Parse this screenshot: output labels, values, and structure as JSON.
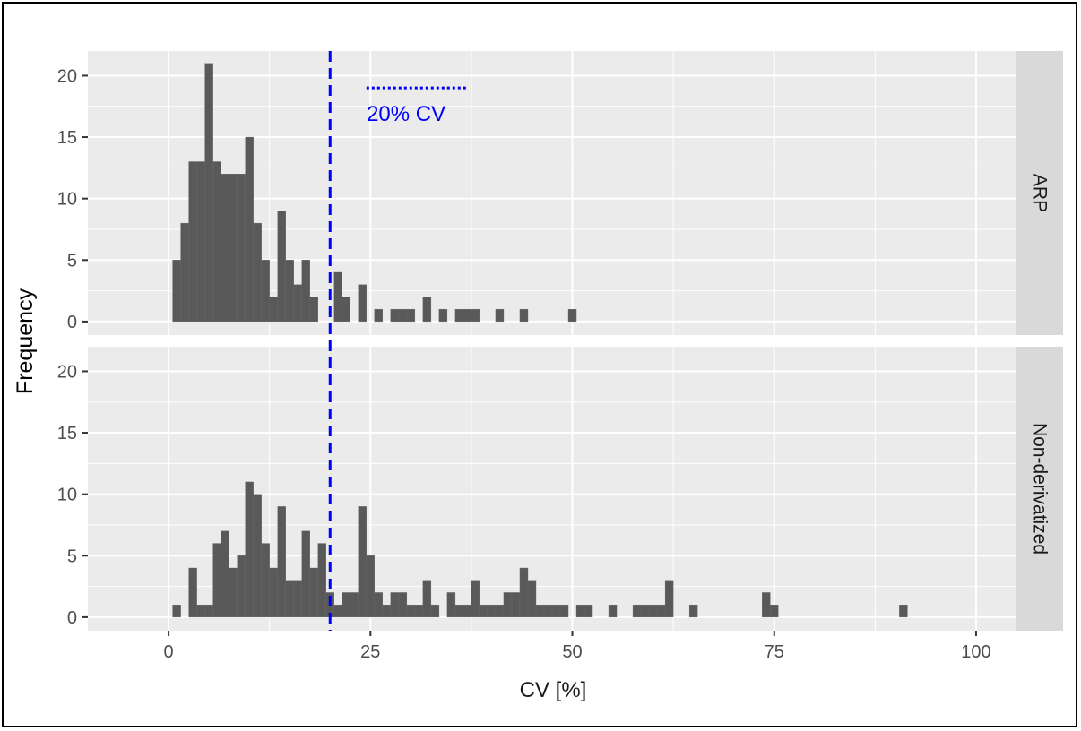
{
  "chart_data": {
    "type": "bar",
    "subtype": "faceted-histogram",
    "xlabel": "CV [%]",
    "ylabel": "Frequency",
    "xlim": [
      -10,
      105
    ],
    "ylim": [
      -1.1,
      22
    ],
    "x_ticks": [
      0,
      25,
      50,
      75,
      100
    ],
    "y_ticks": [
      0,
      5,
      10,
      15,
      20
    ],
    "bin_width": 1,
    "bar_color": "#595959",
    "panel_background": "#ebebeb",
    "grid_color": "#ffffff",
    "strip_background": "#d9d9d9",
    "grid": true,
    "reference_line": {
      "x": 20,
      "style": "dashed",
      "color": "#0000ff"
    },
    "annotation": {
      "text": "20% CV",
      "style": "dotted",
      "color": "#0000ff",
      "x_range": [
        24.5,
        37
      ],
      "y": 19
    },
    "panels": [
      {
        "label": "ARP",
        "bins": [
          {
            "x": 1,
            "y": 5
          },
          {
            "x": 2,
            "y": 8
          },
          {
            "x": 3,
            "y": 13
          },
          {
            "x": 4,
            "y": 13
          },
          {
            "x": 5,
            "y": 21
          },
          {
            "x": 6,
            "y": 13
          },
          {
            "x": 7,
            "y": 12
          },
          {
            "x": 8,
            "y": 12
          },
          {
            "x": 9,
            "y": 12
          },
          {
            "x": 10,
            "y": 15
          },
          {
            "x": 11,
            "y": 8
          },
          {
            "x": 12,
            "y": 5
          },
          {
            "x": 13,
            "y": 2
          },
          {
            "x": 14,
            "y": 9
          },
          {
            "x": 15,
            "y": 5
          },
          {
            "x": 16,
            "y": 3
          },
          {
            "x": 17,
            "y": 5
          },
          {
            "x": 18,
            "y": 2
          },
          {
            "x": 21,
            "y": 4
          },
          {
            "x": 22,
            "y": 2
          },
          {
            "x": 24,
            "y": 3
          },
          {
            "x": 26,
            "y": 1
          },
          {
            "x": 28,
            "y": 1
          },
          {
            "x": 29,
            "y": 1
          },
          {
            "x": 30,
            "y": 1
          },
          {
            "x": 32,
            "y": 2
          },
          {
            "x": 34,
            "y": 1
          },
          {
            "x": 36,
            "y": 1
          },
          {
            "x": 37,
            "y": 1
          },
          {
            "x": 38,
            "y": 1
          },
          {
            "x": 41,
            "y": 1
          },
          {
            "x": 44,
            "y": 1
          },
          {
            "x": 50,
            "y": 1
          }
        ]
      },
      {
        "label": "Non-derivatized",
        "bins": [
          {
            "x": 1,
            "y": 1
          },
          {
            "x": 3,
            "y": 4
          },
          {
            "x": 4,
            "y": 1
          },
          {
            "x": 5,
            "y": 1
          },
          {
            "x": 6,
            "y": 6
          },
          {
            "x": 7,
            "y": 7
          },
          {
            "x": 8,
            "y": 4
          },
          {
            "x": 9,
            "y": 5
          },
          {
            "x": 10,
            "y": 11
          },
          {
            "x": 11,
            "y": 10
          },
          {
            "x": 12,
            "y": 6
          },
          {
            "x": 13,
            "y": 4
          },
          {
            "x": 14,
            "y": 9
          },
          {
            "x": 15,
            "y": 3
          },
          {
            "x": 16,
            "y": 3
          },
          {
            "x": 17,
            "y": 7
          },
          {
            "x": 18,
            "y": 4
          },
          {
            "x": 19,
            "y": 6
          },
          {
            "x": 20,
            "y": 2
          },
          {
            "x": 21,
            "y": 1
          },
          {
            "x": 22,
            "y": 2
          },
          {
            "x": 23,
            "y": 2
          },
          {
            "x": 24,
            "y": 9
          },
          {
            "x": 25,
            "y": 5
          },
          {
            "x": 26,
            "y": 2
          },
          {
            "x": 27,
            "y": 1
          },
          {
            "x": 28,
            "y": 2
          },
          {
            "x": 29,
            "y": 2
          },
          {
            "x": 30,
            "y": 1
          },
          {
            "x": 31,
            "y": 1
          },
          {
            "x": 32,
            "y": 3
          },
          {
            "x": 33,
            "y": 1
          },
          {
            "x": 35,
            "y": 2
          },
          {
            "x": 36,
            "y": 1
          },
          {
            "x": 37,
            "y": 1
          },
          {
            "x": 38,
            "y": 3
          },
          {
            "x": 39,
            "y": 1
          },
          {
            "x": 40,
            "y": 1
          },
          {
            "x": 41,
            "y": 1
          },
          {
            "x": 42,
            "y": 2
          },
          {
            "x": 43,
            "y": 2
          },
          {
            "x": 44,
            "y": 4
          },
          {
            "x": 45,
            "y": 3
          },
          {
            "x": 46,
            "y": 1
          },
          {
            "x": 47,
            "y": 1
          },
          {
            "x": 48,
            "y": 1
          },
          {
            "x": 49,
            "y": 1
          },
          {
            "x": 51,
            "y": 1
          },
          {
            "x": 52,
            "y": 1
          },
          {
            "x": 55,
            "y": 1
          },
          {
            "x": 58,
            "y": 1
          },
          {
            "x": 59,
            "y": 1
          },
          {
            "x": 60,
            "y": 1
          },
          {
            "x": 61,
            "y": 1
          },
          {
            "x": 62,
            "y": 3
          },
          {
            "x": 65,
            "y": 1
          },
          {
            "x": 74,
            "y": 2
          },
          {
            "x": 75,
            "y": 1
          },
          {
            "x": 91,
            "y": 1
          }
        ]
      }
    ]
  }
}
